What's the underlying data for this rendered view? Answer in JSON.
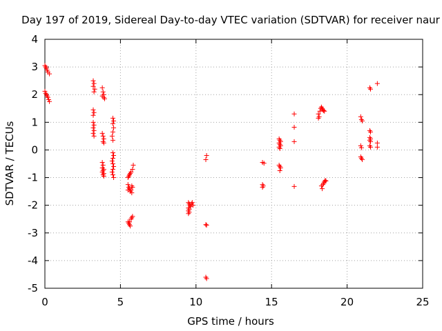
{
  "chart_data": {
    "type": "scatter",
    "title": "Day 197 of 2019, Sidereal Day-to-day VTEC variation (SDTVAR) for receiver naur",
    "xlabel": "GPS time / hours",
    "ylabel": "SDTVAR / TECUs",
    "xlim": [
      0,
      25
    ],
    "ylim": [
      -5,
      4
    ],
    "xticks": [
      0,
      5,
      10,
      15,
      20,
      25
    ],
    "yticks": [
      -5,
      -4,
      -3,
      -2,
      -1,
      0,
      1,
      2,
      3,
      4
    ],
    "grid": true,
    "marker": "+",
    "series": [
      {
        "name": "SDTVAR",
        "color": "#ff0000",
        "points": [
          [
            0.0,
            3.05
          ],
          [
            0.05,
            3.0
          ],
          [
            0.1,
            2.95
          ],
          [
            0.15,
            2.88
          ],
          [
            0.2,
            2.82
          ],
          [
            0.3,
            2.75
          ],
          [
            0.0,
            2.12
          ],
          [
            0.05,
            2.05
          ],
          [
            0.1,
            2.0
          ],
          [
            0.15,
            1.95
          ],
          [
            0.2,
            1.9
          ],
          [
            0.25,
            1.82
          ],
          [
            0.3,
            1.75
          ],
          [
            3.2,
            2.5
          ],
          [
            3.25,
            2.4
          ],
          [
            3.2,
            2.3
          ],
          [
            3.3,
            2.2
          ],
          [
            3.25,
            2.1
          ],
          [
            3.8,
            2.25
          ],
          [
            3.85,
            2.1
          ],
          [
            3.9,
            2.0
          ],
          [
            3.8,
            1.95
          ],
          [
            3.9,
            1.9
          ],
          [
            3.95,
            1.85
          ],
          [
            3.2,
            1.45
          ],
          [
            3.25,
            1.35
          ],
          [
            3.2,
            1.25
          ],
          [
            3.2,
            1.0
          ],
          [
            3.25,
            0.9
          ],
          [
            3.2,
            0.8
          ],
          [
            3.25,
            0.7
          ],
          [
            3.2,
            0.6
          ],
          [
            3.25,
            0.5
          ],
          [
            3.8,
            0.6
          ],
          [
            3.85,
            0.5
          ],
          [
            3.9,
            0.4
          ],
          [
            3.85,
            0.3
          ],
          [
            3.9,
            0.25
          ],
          [
            4.5,
            1.15
          ],
          [
            4.55,
            1.05
          ],
          [
            4.5,
            0.95
          ],
          [
            4.55,
            0.8
          ],
          [
            4.5,
            0.65
          ],
          [
            4.45,
            0.5
          ],
          [
            4.5,
            0.35
          ],
          [
            4.5,
            -0.1
          ],
          [
            4.55,
            -0.2
          ],
          [
            4.5,
            -0.3
          ],
          [
            4.45,
            -0.4
          ],
          [
            4.5,
            -0.5
          ],
          [
            4.55,
            -0.6
          ],
          [
            4.5,
            -0.7
          ],
          [
            4.45,
            -0.8
          ],
          [
            4.5,
            -0.9
          ],
          [
            4.55,
            -1.0
          ],
          [
            3.8,
            -0.45
          ],
          [
            3.85,
            -0.55
          ],
          [
            3.8,
            -0.65
          ],
          [
            3.9,
            -0.7
          ],
          [
            3.85,
            -0.75
          ],
          [
            3.8,
            -0.8
          ],
          [
            3.9,
            -0.85
          ],
          [
            3.85,
            -0.9
          ],
          [
            3.9,
            -0.95
          ],
          [
            5.5,
            -1.0
          ],
          [
            5.55,
            -0.95
          ],
          [
            5.6,
            -0.9
          ],
          [
            5.65,
            -0.85
          ],
          [
            5.7,
            -0.8
          ],
          [
            5.8,
            -0.7
          ],
          [
            5.85,
            -0.55
          ],
          [
            5.5,
            -1.25
          ],
          [
            5.55,
            -1.35
          ],
          [
            5.6,
            -1.4
          ],
          [
            5.5,
            -1.45
          ],
          [
            5.65,
            -1.5
          ],
          [
            5.7,
            -1.45
          ],
          [
            5.75,
            -1.55
          ],
          [
            5.8,
            -1.35
          ],
          [
            5.75,
            -1.3
          ],
          [
            5.5,
            -2.6
          ],
          [
            5.55,
            -2.65
          ],
          [
            5.6,
            -2.7
          ],
          [
            5.65,
            -2.75
          ],
          [
            5.6,
            -2.6
          ],
          [
            5.7,
            -2.5
          ],
          [
            5.75,
            -2.45
          ],
          [
            5.8,
            -2.4
          ],
          [
            9.5,
            -1.9
          ],
          [
            9.55,
            -1.95
          ],
          [
            9.6,
            -2.0
          ],
          [
            9.65,
            -2.05
          ],
          [
            9.7,
            -1.95
          ],
          [
            9.75,
            -1.9
          ],
          [
            9.8,
            -2.0
          ],
          [
            9.5,
            -2.1
          ],
          [
            9.55,
            -2.15
          ],
          [
            9.5,
            -2.2
          ],
          [
            9.55,
            -2.25
          ],
          [
            9.5,
            -2.3
          ],
          [
            10.7,
            -0.2
          ],
          [
            10.65,
            -0.35
          ],
          [
            10.65,
            -2.7
          ],
          [
            10.7,
            -2.72
          ],
          [
            10.65,
            -4.6
          ],
          [
            10.7,
            -4.65
          ],
          [
            14.4,
            -0.45
          ],
          [
            14.5,
            -0.48
          ],
          [
            14.4,
            -1.25
          ],
          [
            14.45,
            -1.3
          ],
          [
            14.4,
            -1.35
          ],
          [
            15.5,
            0.4
          ],
          [
            15.55,
            0.35
          ],
          [
            15.6,
            0.3
          ],
          [
            15.5,
            0.25
          ],
          [
            15.55,
            0.2
          ],
          [
            15.6,
            0.15
          ],
          [
            15.5,
            0.1
          ],
          [
            15.55,
            0.05
          ],
          [
            15.5,
            -0.55
          ],
          [
            15.55,
            -0.6
          ],
          [
            15.6,
            -0.65
          ],
          [
            15.55,
            -0.75
          ],
          [
            16.5,
            1.3
          ],
          [
            16.5,
            0.82
          ],
          [
            16.5,
            0.3
          ],
          [
            16.5,
            -1.32
          ],
          [
            18.1,
            1.3
          ],
          [
            18.15,
            1.2
          ],
          [
            18.2,
            1.4
          ],
          [
            18.25,
            1.5
          ],
          [
            18.3,
            1.55
          ],
          [
            18.35,
            1.5
          ],
          [
            18.4,
            1.45
          ],
          [
            18.45,
            1.42
          ],
          [
            18.5,
            1.4
          ],
          [
            18.1,
            1.15
          ],
          [
            18.3,
            -1.3
          ],
          [
            18.35,
            -1.4
          ],
          [
            18.4,
            -1.25
          ],
          [
            18.45,
            -1.2
          ],
          [
            18.5,
            -1.15
          ],
          [
            18.55,
            -1.1
          ],
          [
            18.6,
            -1.12
          ],
          [
            20.9,
            1.2
          ],
          [
            20.95,
            1.1
          ],
          [
            21.0,
            1.05
          ],
          [
            20.9,
            0.15
          ],
          [
            20.95,
            0.08
          ],
          [
            20.9,
            -0.25
          ],
          [
            20.95,
            -0.3
          ],
          [
            21.0,
            -0.35
          ],
          [
            21.5,
            2.25
          ],
          [
            21.55,
            2.2
          ],
          [
            21.5,
            0.7
          ],
          [
            21.55,
            0.65
          ],
          [
            21.5,
            0.45
          ],
          [
            21.55,
            0.4
          ],
          [
            21.5,
            0.35
          ],
          [
            21.55,
            0.3
          ],
          [
            21.5,
            0.15
          ],
          [
            21.55,
            0.1
          ],
          [
            22.0,
            2.4
          ],
          [
            22.0,
            0.25
          ],
          [
            22.0,
            0.1
          ]
        ]
      }
    ]
  }
}
